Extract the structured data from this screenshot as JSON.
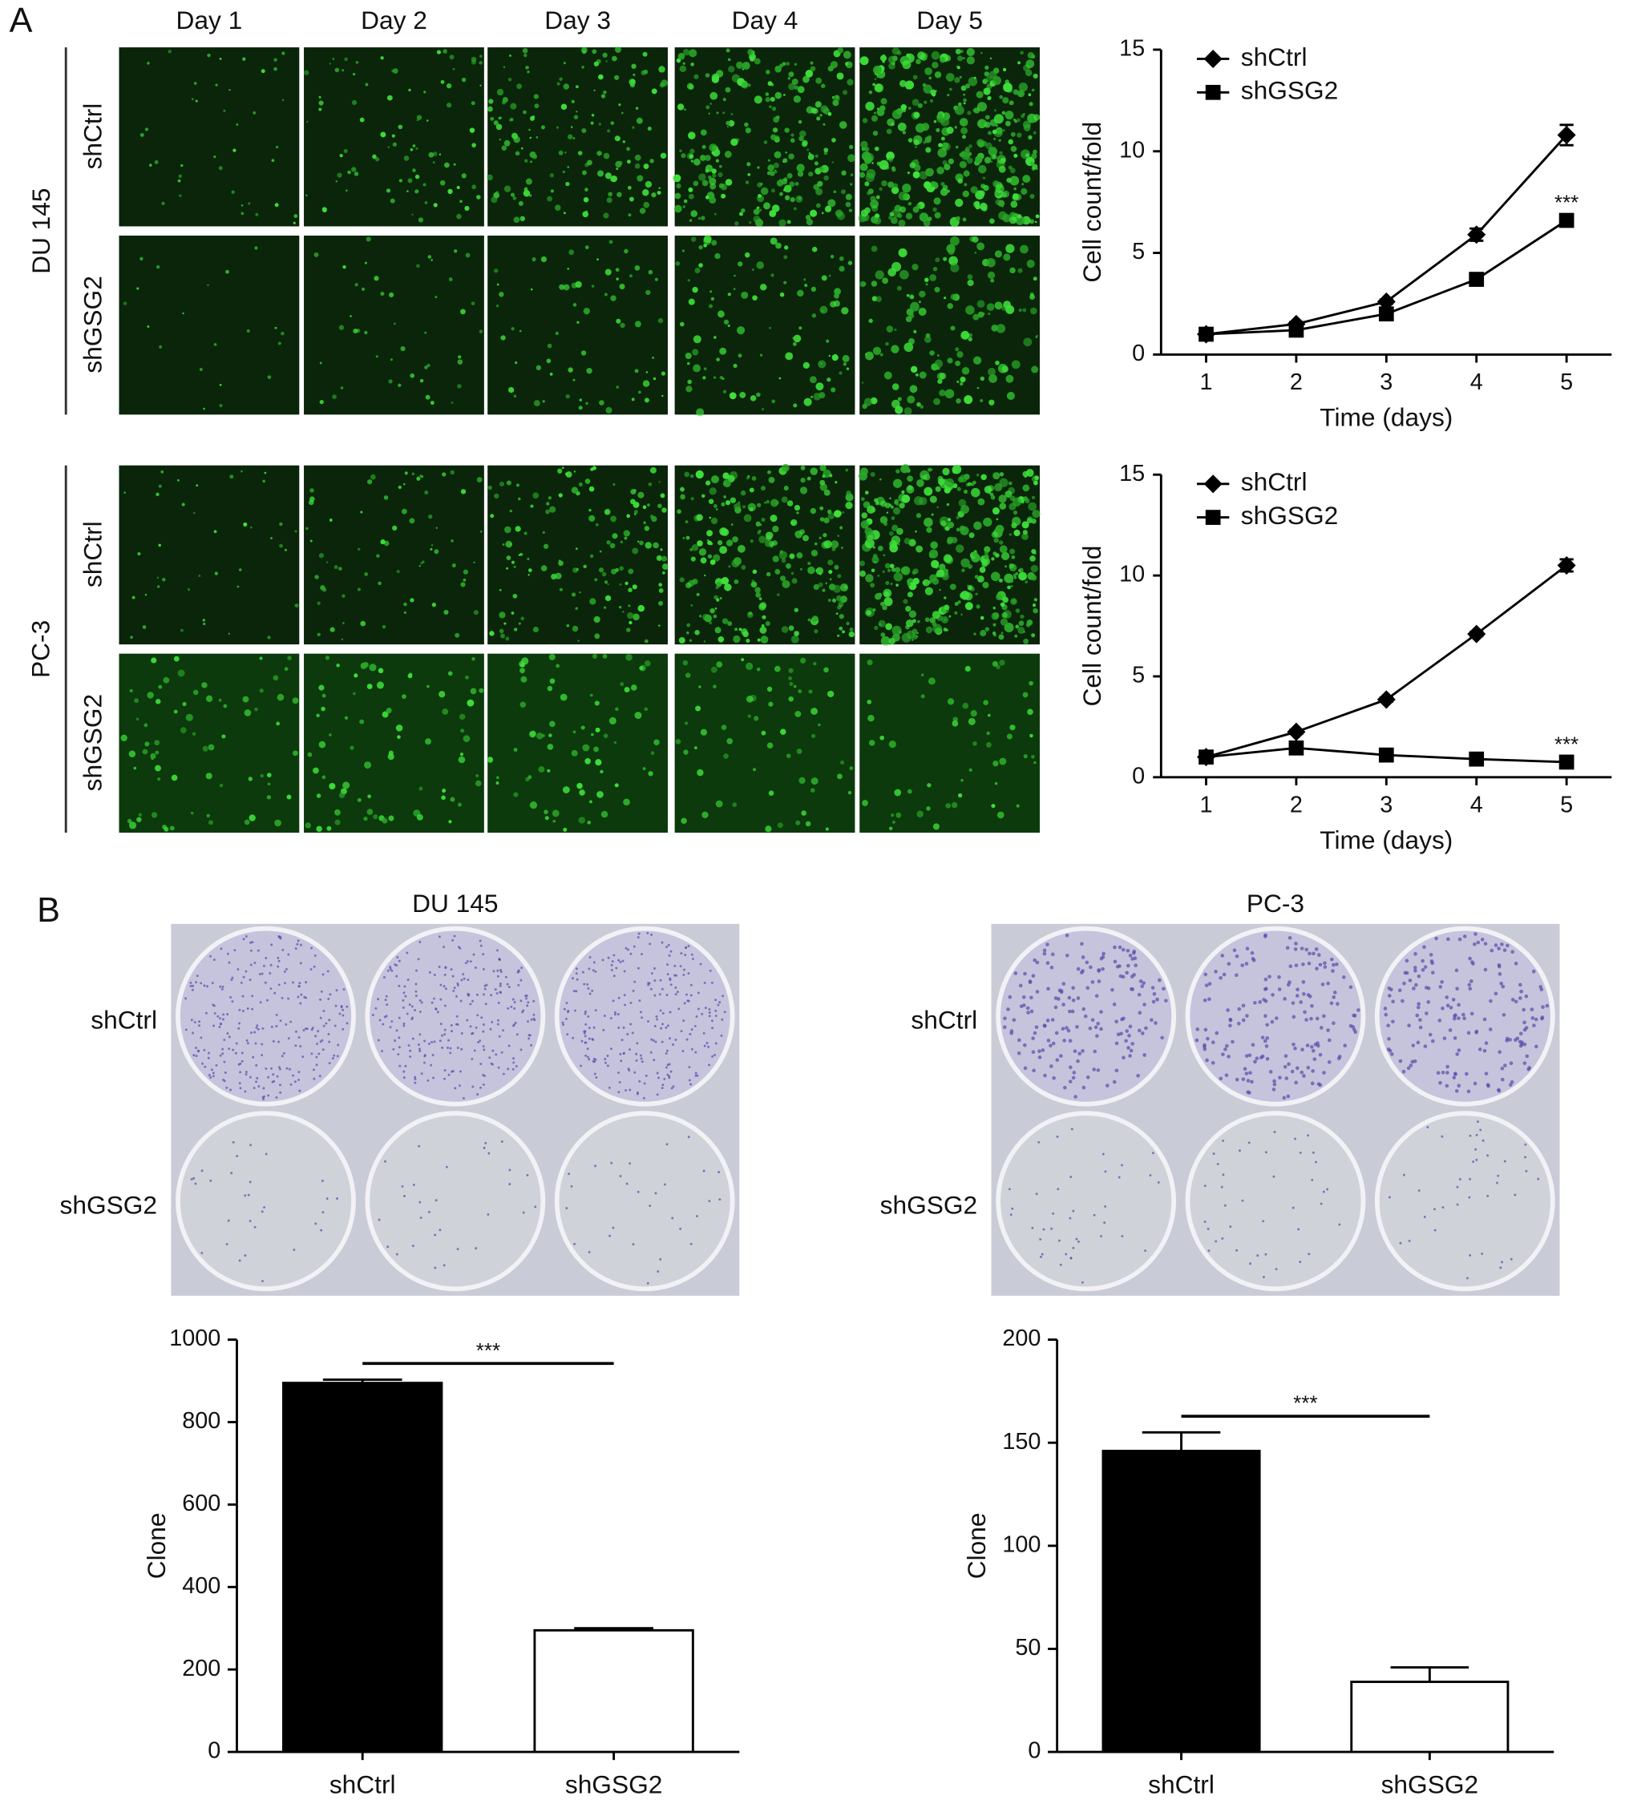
{
  "panel_labels": [
    "A",
    "B"
  ],
  "panel_a": {
    "days": [
      "Day 1",
      "Day 2",
      "Day 3",
      "Day 4",
      "Day 5"
    ],
    "cell_lines": [
      {
        "name": "DU 145",
        "rows": [
          "shCtrl",
          "shGSG2"
        ]
      },
      {
        "name": "PC-3",
        "rows": [
          "shCtrl",
          "shGSG2"
        ]
      }
    ]
  },
  "panel_b": {
    "plates": [
      {
        "title": "DU 145",
        "rows": [
          "shCtrl",
          "shGSG2"
        ]
      },
      {
        "title": "PC-3",
        "rows": [
          "shCtrl",
          "shGSG2"
        ]
      }
    ]
  },
  "chart_data": [
    {
      "type": "line",
      "xlabel": "Time (days)",
      "ylabel": "Cell count/fold",
      "x": [
        1,
        2,
        3,
        4,
        5
      ],
      "xlim": [
        0.5,
        5.5
      ],
      "xticks": [
        1,
        2,
        3,
        4,
        5
      ],
      "ylim": [
        0,
        15
      ],
      "yticks": [
        0,
        5,
        10,
        15
      ],
      "legend": "top-left",
      "annotation": "***",
      "series": [
        {
          "name": "shCtrl",
          "color": "#000000",
          "marker": "diamond",
          "values": [
            1,
            1.5,
            2.6,
            5.9,
            10.8
          ],
          "errors": [
            0.1,
            0.1,
            0.1,
            0.3,
            0.5
          ]
        },
        {
          "name": "shGSG2",
          "color": "#000000",
          "marker": "square",
          "values": [
            1,
            1.2,
            2.0,
            3.7,
            6.6
          ],
          "errors": [
            0.1,
            0.1,
            0.1,
            0.1,
            0.1
          ]
        }
      ]
    },
    {
      "type": "line",
      "xlabel": "Time (days)",
      "ylabel": "Cell count/fold",
      "x": [
        1,
        2,
        3,
        4,
        5
      ],
      "xlim": [
        0.5,
        5.5
      ],
      "xticks": [
        1,
        2,
        3,
        4,
        5
      ],
      "ylim": [
        0,
        15
      ],
      "yticks": [
        0,
        5,
        10,
        15
      ],
      "legend": "top-left",
      "annotation": "***",
      "series": [
        {
          "name": "shCtrl",
          "color": "#000000",
          "marker": "diamond",
          "values": [
            1,
            2.25,
            3.85,
            7.1,
            10.5
          ],
          "errors": [
            0.1,
            0.1,
            0.1,
            0.1,
            0.3
          ]
        },
        {
          "name": "shGSG2",
          "color": "#000000",
          "marker": "square",
          "values": [
            1,
            1.45,
            1.1,
            0.9,
            0.75
          ],
          "errors": [
            0.1,
            0.1,
            0.1,
            0.1,
            0.1
          ]
        }
      ]
    },
    {
      "type": "bar",
      "ylabel": "Clone",
      "categories": [
        "shCtrl",
        "shGSG2"
      ],
      "values": [
        895,
        295
      ],
      "errors": [
        8,
        5
      ],
      "colors": [
        "#000000",
        "#ffffff"
      ],
      "ylim": [
        0,
        1000
      ],
      "yticks": [
        0,
        200,
        400,
        600,
        800,
        1000
      ],
      "annotation": "***"
    },
    {
      "type": "bar",
      "ylabel": "Clone",
      "categories": [
        "shCtrl",
        "shGSG2"
      ],
      "values": [
        146,
        34
      ],
      "errors": [
        9,
        7
      ],
      "colors": [
        "#000000",
        "#ffffff"
      ],
      "ylim": [
        0,
        200
      ],
      "yticks": [
        0,
        50,
        100,
        150,
        200
      ],
      "annotation": "***"
    }
  ]
}
